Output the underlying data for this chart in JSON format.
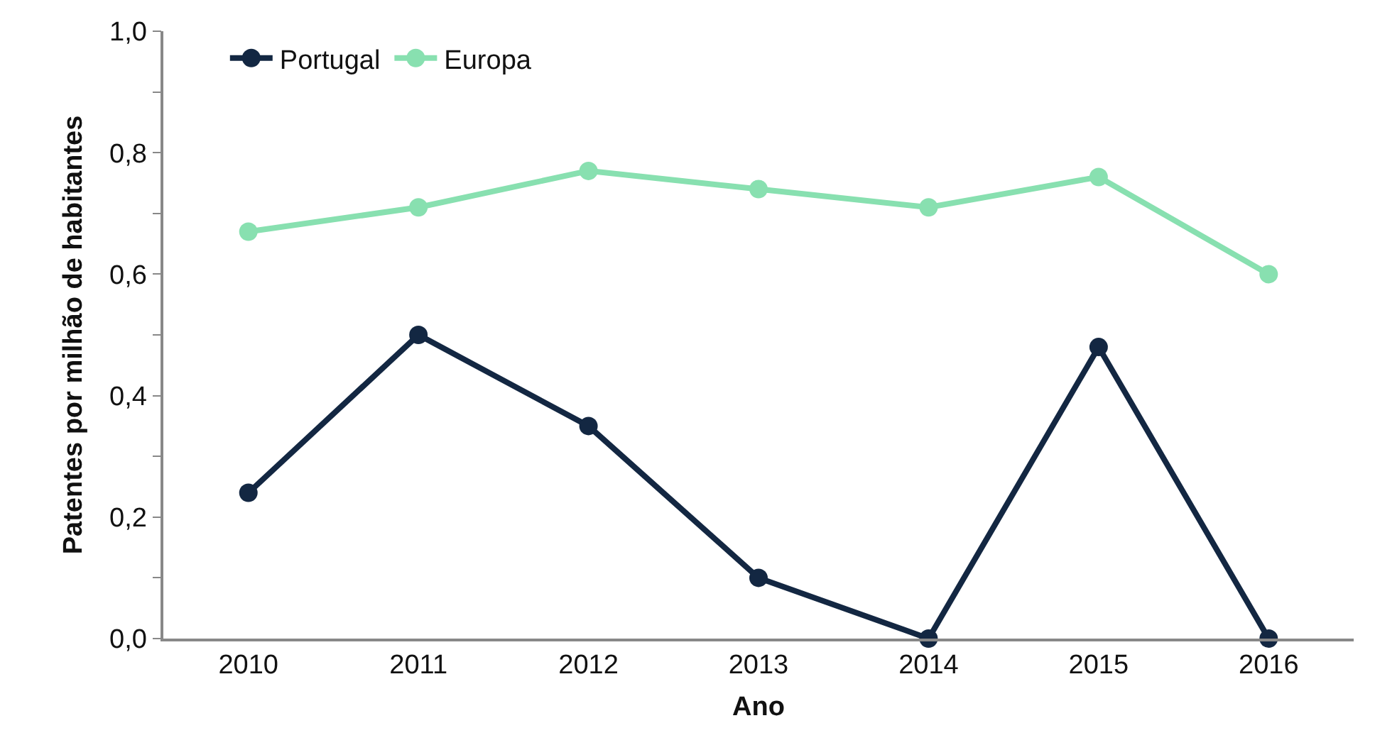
{
  "chart_data": {
    "type": "line",
    "xlabel": "Ano",
    "ylabel": "Patentes por milhão de habitantes",
    "categories": [
      "2010",
      "2011",
      "2012",
      "2013",
      "2014",
      "2015",
      "2016"
    ],
    "series": [
      {
        "name": "Portugal",
        "color": "#132742",
        "values": [
          0.24,
          0.5,
          0.35,
          0.1,
          0.0,
          0.48,
          0.0
        ]
      },
      {
        "name": "Europa",
        "color": "#88e0b0",
        "values": [
          0.67,
          0.71,
          0.77,
          0.74,
          0.71,
          0.76,
          0.6
        ]
      }
    ],
    "ylim": [
      0,
      1
    ],
    "yticks": [
      {
        "value": 0,
        "label": "0,0"
      },
      {
        "value": 0.1,
        "label": null
      },
      {
        "value": 0.2,
        "label": "0,2"
      },
      {
        "value": 0.3,
        "label": null
      },
      {
        "value": 0.4,
        "label": "0,4"
      },
      {
        "value": 0.5,
        "label": null
      },
      {
        "value": 0.6,
        "label": "0,6"
      },
      {
        "value": 0.7,
        "label": null
      },
      {
        "value": 0.8,
        "label": "0,8"
      },
      {
        "value": 0.9,
        "label": null
      },
      {
        "value": 1,
        "label": "1,0"
      }
    ],
    "grid": false,
    "legend": "top left",
    "marker": "circle",
    "line_style": "solid"
  }
}
